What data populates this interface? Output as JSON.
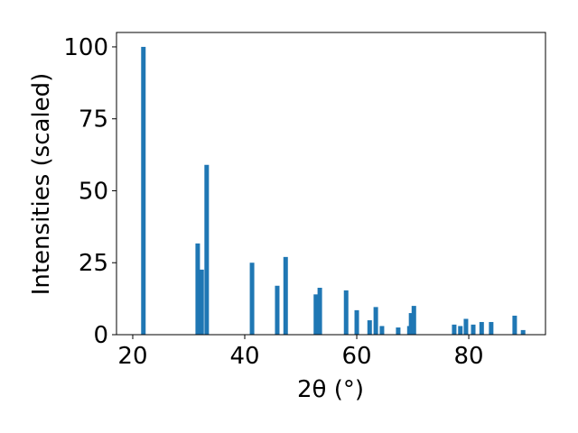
{
  "chart_data": {
    "type": "bar",
    "x_label": "2θ (°)",
    "y_label": "Intensities (scaled)",
    "x": [
      21.9,
      31.6,
      32.3,
      33.2,
      41.3,
      45.8,
      47.3,
      52.7,
      53.4,
      58.1,
      60.0,
      62.3,
      63.4,
      64.5,
      67.4,
      69.4,
      69.7,
      70.2,
      77.4,
      78.5,
      79.5,
      80.8,
      82.3,
      84.0,
      88.2,
      89.7
    ],
    "values": [
      100,
      31.7,
      22.6,
      59,
      25,
      17,
      27,
      14,
      16.3,
      15.4,
      8.5,
      5,
      9.6,
      3,
      2.5,
      3,
      7.5,
      10,
      3.5,
      3,
      5.5,
      3.5,
      4.4,
      4.4,
      6.6,
      1.6
    ],
    "color": "#1f77b4",
    "xlim": [
      17.1,
      93.7
    ],
    "xticks": [
      20,
      40,
      60,
      80
    ],
    "ylim": [
      0,
      105
    ],
    "yticks": [
      0,
      25,
      50,
      75,
      100
    ]
  }
}
